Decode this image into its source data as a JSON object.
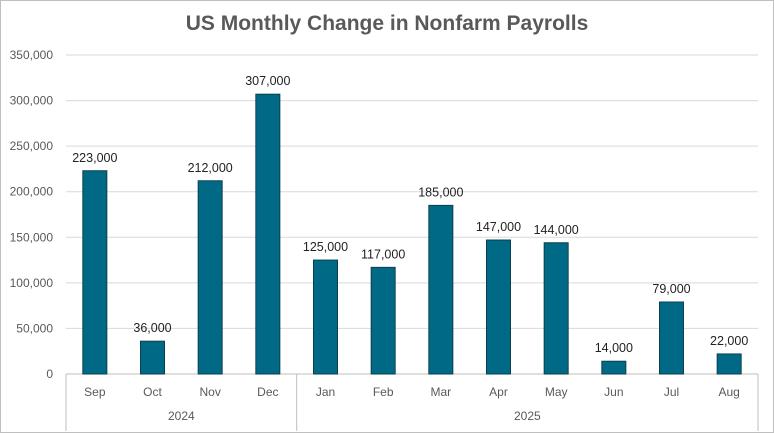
{
  "chart_data": {
    "type": "bar",
    "title": "US Monthly Change in Nonfarm Payrolls",
    "categories": [
      "Sep",
      "Oct",
      "Nov",
      "Dec",
      "Jan",
      "Feb",
      "Mar",
      "Apr",
      "May",
      "Jun",
      "Jul",
      "Aug"
    ],
    "values": [
      223000,
      36000,
      212000,
      307000,
      125000,
      117000,
      185000,
      147000,
      144000,
      14000,
      79000,
      22000
    ],
    "data_labels": [
      "223,000",
      "36,000",
      "212,000",
      "307,000",
      "125,000",
      "117,000",
      "185,000",
      "147,000",
      "144,000",
      "14,000",
      "79,000",
      "22,000"
    ],
    "groups": [
      {
        "label": "2024",
        "start": 0,
        "count": 4
      },
      {
        "label": "2025",
        "start": 4,
        "count": 8
      }
    ],
    "y_ticks": [
      0,
      50000,
      100000,
      150000,
      200000,
      250000,
      300000,
      350000
    ],
    "y_tick_labels": [
      "0",
      "50,000",
      "100,000",
      "150,000",
      "200,000",
      "250,000",
      "300,000",
      "350,000"
    ],
    "ylim": [
      0,
      350000
    ],
    "grid": true,
    "colors": {
      "bar": "#006a86",
      "bar_edge": "#0b3f4f",
      "grid": "#d9d9d9",
      "axis": "#bfbfbf",
      "text": "#595959"
    }
  }
}
